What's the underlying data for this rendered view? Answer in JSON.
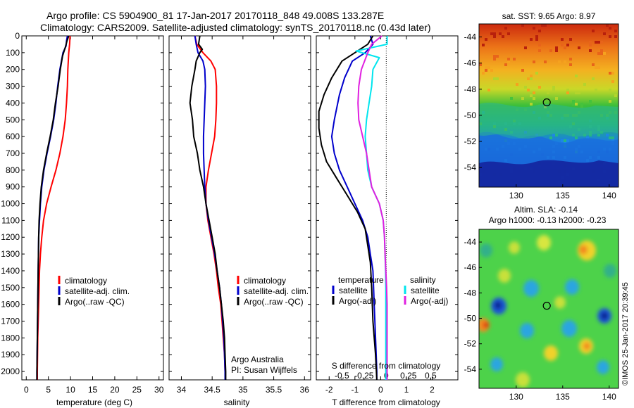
{
  "header": {
    "line1": "Argo profile: CS 5904900_81 17-Jan-2017 20170118_848 49.008S 133.287E",
    "line2": "Climatology: CARS2009. Satellite-adjusted climatology: synTS_20170118.nc (0.43d later)"
  },
  "colors": {
    "climatology": "#ff0000",
    "satellite": "#0000cc",
    "argo": "#000000",
    "sal_satellite": "#00e5ee",
    "sal_argo": "#e020e0"
  },
  "chart_data": [
    {
      "type": "line",
      "id": "temperature",
      "xlabel": "temperature (deg C)",
      "xlim": [
        -1,
        31
      ],
      "ylim": [
        2050,
        0
      ],
      "xticks": [
        0,
        5,
        10,
        15,
        20,
        25,
        30
      ],
      "yticks": [
        0,
        100,
        200,
        300,
        400,
        500,
        600,
        700,
        800,
        900,
        1000,
        1100,
        1200,
        1300,
        1400,
        1500,
        1600,
        1700,
        1800,
        1900,
        2000
      ],
      "legend": [
        "climatology",
        "satellite-adj. clim.",
        "Argo(..raw -QC)"
      ],
      "series": [
        {
          "name": "climatology",
          "color": "climatology",
          "points": [
            [
              9.9,
              0
            ],
            [
              9.8,
              50
            ],
            [
              9.6,
              100
            ],
            [
              9.4,
              200
            ],
            [
              9.3,
              300
            ],
            [
              9.1,
              400
            ],
            [
              8.8,
              500
            ],
            [
              8.3,
              600
            ],
            [
              7.6,
              700
            ],
            [
              6.7,
              800
            ],
            [
              5.6,
              900
            ],
            [
              4.6,
              1000
            ],
            [
              3.9,
              1100
            ],
            [
              3.5,
              1200
            ],
            [
              3.2,
              1300
            ],
            [
              3.0,
              1400
            ],
            [
              2.8,
              1600
            ],
            [
              2.6,
              1800
            ],
            [
              2.5,
              2000
            ],
            [
              2.5,
              2050
            ]
          ]
        },
        {
          "name": "satellite-adj. clim.",
          "color": "satellite",
          "points": [
            [
              9.3,
              0
            ],
            [
              9.1,
              30
            ],
            [
              9.0,
              60
            ],
            [
              8.3,
              100
            ],
            [
              7.6,
              200
            ],
            [
              7.1,
              300
            ],
            [
              6.7,
              400
            ],
            [
              6.2,
              500
            ],
            [
              5.5,
              600
            ],
            [
              4.7,
              700
            ],
            [
              4.0,
              800
            ],
            [
              3.5,
              900
            ],
            [
              3.2,
              1000
            ],
            [
              3.0,
              1100
            ],
            [
              2.8,
              1200
            ],
            [
              2.7,
              1400
            ],
            [
              2.6,
              1600
            ],
            [
              2.5,
              1800
            ],
            [
              2.4,
              2000
            ],
            [
              2.4,
              2050
            ]
          ]
        },
        {
          "name": "Argo(..raw -QC)",
          "color": "argo",
          "points": [
            [
              9.6,
              0
            ],
            [
              9.2,
              30
            ],
            [
              8.8,
              70
            ],
            [
              8.2,
              120
            ],
            [
              7.7,
              200
            ],
            [
              7.2,
              300
            ],
            [
              6.6,
              400
            ],
            [
              6.1,
              500
            ],
            [
              5.4,
              600
            ],
            [
              4.6,
              700
            ],
            [
              3.9,
              800
            ],
            [
              3.4,
              900
            ],
            [
              3.1,
              1000
            ],
            [
              2.9,
              1100
            ],
            [
              2.8,
              1200
            ],
            [
              2.7,
              1400
            ],
            [
              2.6,
              1600
            ],
            [
              2.5,
              1800
            ],
            [
              2.4,
              2000
            ],
            [
              2.4,
              2050
            ]
          ]
        }
      ]
    },
    {
      "type": "line",
      "id": "salinity",
      "xlabel": "salinity",
      "xlim": [
        33.8,
        36.1
      ],
      "ylim": [
        2050,
        0
      ],
      "xticks": [
        34,
        34.5,
        35,
        35.5,
        36
      ],
      "legend": [
        "climatology",
        "satellite-adj. clim.",
        "Argo(..raw -QC)"
      ],
      "annotations": [
        "Argo Australia",
        "PI: Susan Wijffels"
      ],
      "series": [
        {
          "name": "climatology",
          "color": "climatology",
          "points": [
            [
              34.22,
              0
            ],
            [
              34.25,
              50
            ],
            [
              34.35,
              100
            ],
            [
              34.48,
              150
            ],
            [
              34.55,
              200
            ],
            [
              34.57,
              300
            ],
            [
              34.57,
              400
            ],
            [
              34.56,
              500
            ],
            [
              34.54,
              600
            ],
            [
              34.49,
              700
            ],
            [
              34.44,
              800
            ],
            [
              34.4,
              900
            ],
            [
              34.4,
              1000
            ],
            [
              34.43,
              1100
            ],
            [
              34.48,
              1200
            ],
            [
              34.53,
              1300
            ],
            [
              34.57,
              1400
            ],
            [
              34.6,
              1500
            ],
            [
              34.64,
              1600
            ],
            [
              34.66,
              1700
            ],
            [
              34.68,
              1800
            ],
            [
              34.7,
              1900
            ],
            [
              34.71,
              2000
            ],
            [
              34.71,
              2050
            ]
          ]
        },
        {
          "name": "satellite-adj. clim.",
          "color": "satellite",
          "points": [
            [
              34.22,
              0
            ],
            [
              34.24,
              50
            ],
            [
              34.27,
              100
            ],
            [
              34.35,
              150
            ],
            [
              34.38,
              200
            ],
            [
              34.39,
              300
            ],
            [
              34.38,
              400
            ],
            [
              34.37,
              500
            ],
            [
              34.36,
              600
            ],
            [
              34.36,
              700
            ],
            [
              34.37,
              800
            ],
            [
              34.38,
              900
            ],
            [
              34.4,
              1000
            ],
            [
              34.44,
              1100
            ],
            [
              34.49,
              1200
            ],
            [
              34.54,
              1300
            ],
            [
              34.58,
              1400
            ],
            [
              34.62,
              1500
            ],
            [
              34.65,
              1600
            ],
            [
              34.67,
              1700
            ],
            [
              34.69,
              1800
            ],
            [
              34.7,
              1900
            ],
            [
              34.71,
              2000
            ],
            [
              34.71,
              2050
            ]
          ]
        },
        {
          "name": "Argo(..raw -QC)",
          "color": "argo",
          "points": [
            [
              34.3,
              0
            ],
            [
              34.28,
              50
            ],
            [
              34.34,
              80
            ],
            [
              34.3,
              100
            ],
            [
              34.24,
              150
            ],
            [
              34.22,
              200
            ],
            [
              34.17,
              300
            ],
            [
              34.14,
              400
            ],
            [
              34.18,
              500
            ],
            [
              34.2,
              600
            ],
            [
              34.26,
              700
            ],
            [
              34.3,
              800
            ],
            [
              34.36,
              900
            ],
            [
              34.4,
              1000
            ],
            [
              34.45,
              1100
            ],
            [
              34.5,
              1200
            ],
            [
              34.55,
              1300
            ],
            [
              34.58,
              1400
            ],
            [
              34.62,
              1500
            ],
            [
              34.65,
              1600
            ],
            [
              34.68,
              1700
            ],
            [
              34.7,
              1800
            ],
            [
              34.71,
              1900
            ],
            [
              34.72,
              2000
            ],
            [
              34.72,
              2050
            ]
          ]
        }
      ]
    },
    {
      "type": "line",
      "id": "difference",
      "xlabel": "T difference from climatology",
      "xlabel_top": "S difference from climatology",
      "xlim": [
        -2.5,
        3
      ],
      "ylim": [
        2050,
        0
      ],
      "xticks": [
        -2,
        -1,
        0,
        1,
        2
      ],
      "sticks": [
        -0.5,
        -0.25,
        0,
        0.25,
        0.5
      ],
      "stick_labels": [
        "-0.5",
        "-0.25",
        "0",
        "0.25",
        "0.5"
      ],
      "legend_t": [
        "temperature",
        "satellite",
        "Argo(-adj)"
      ],
      "legend_s": [
        "salinity",
        "satellite",
        "Argo(-adj)"
      ],
      "series": [
        {
          "name": "T satellite",
          "color": "satellite",
          "points": [
            [
              -0.4,
              0
            ],
            [
              -0.3,
              50
            ],
            [
              -0.6,
              100
            ],
            [
              -1.1,
              150
            ],
            [
              -1.4,
              250
            ],
            [
              -1.6,
              350
            ],
            [
              -1.8,
              500
            ],
            [
              -1.9,
              600
            ],
            [
              -1.8,
              700
            ],
            [
              -1.6,
              800
            ],
            [
              -1.3,
              900
            ],
            [
              -1.0,
              1000
            ],
            [
              -0.7,
              1100
            ],
            [
              -0.5,
              1200
            ],
            [
              -0.4,
              1300
            ],
            [
              -0.3,
              1400
            ],
            [
              -0.25,
              1600
            ],
            [
              -0.2,
              1800
            ],
            [
              -0.15,
              2000
            ],
            [
              -0.15,
              2050
            ]
          ]
        },
        {
          "name": "T Argo(-adj)",
          "color": "argo",
          "points": [
            [
              -0.3,
              0
            ],
            [
              -0.5,
              50
            ],
            [
              -1.0,
              100
            ],
            [
              -1.5,
              150
            ],
            [
              -1.9,
              250
            ],
            [
              -2.2,
              350
            ],
            [
              -2.4,
              450
            ],
            [
              -2.4,
              550
            ],
            [
              -2.3,
              650
            ],
            [
              -2.1,
              750
            ],
            [
              -1.7,
              850
            ],
            [
              -1.3,
              950
            ],
            [
              -0.9,
              1050
            ],
            [
              -0.6,
              1150
            ],
            [
              -0.5,
              1250
            ],
            [
              -0.4,
              1350
            ],
            [
              -0.35,
              1500
            ],
            [
              -0.3,
              1700
            ],
            [
              -0.2,
              1900
            ],
            [
              -0.15,
              2050
            ]
          ]
        },
        {
          "name": "S satellite",
          "color": "sal_satellite",
          "points": [
            [
              0.25,
              0
            ],
            [
              0.25,
              50
            ],
            [
              -0.95,
              90
            ],
            [
              -0.05,
              130
            ],
            [
              -0.3,
              200
            ],
            [
              -0.35,
              300
            ],
            [
              -0.45,
              400
            ],
            [
              -0.55,
              500
            ],
            [
              -0.6,
              600
            ],
            [
              -0.55,
              700
            ],
            [
              -0.5,
              800
            ],
            [
              -0.35,
              900
            ],
            [
              -0.05,
              1000
            ],
            [
              0.1,
              1100
            ],
            [
              0.15,
              1200
            ],
            [
              0.17,
              1300
            ],
            [
              0.19,
              1400
            ],
            [
              0.2,
              1500
            ],
            [
              0.2,
              1700
            ],
            [
              0.2,
              1900
            ],
            [
              0.2,
              2000
            ],
            [
              0.2,
              2050
            ]
          ]
        },
        {
          "name": "S Argo(-adj)",
          "color": "sal_argo",
          "points": [
            [
              0.05,
              0
            ],
            [
              -0.35,
              50
            ],
            [
              -0.5,
              100
            ],
            [
              -0.75,
              200
            ],
            [
              -0.85,
              300
            ],
            [
              -0.88,
              400
            ],
            [
              -0.85,
              500
            ],
            [
              -0.7,
              600
            ],
            [
              -0.55,
              700
            ],
            [
              -0.45,
              800
            ],
            [
              -0.35,
              900
            ],
            [
              -0.05,
              1000
            ],
            [
              0.1,
              1100
            ],
            [
              0.15,
              1200
            ],
            [
              0.17,
              1300
            ],
            [
              0.2,
              1400
            ],
            [
              0.23,
              1500
            ],
            [
              0.25,
              1600
            ],
            [
              0.25,
              1800
            ],
            [
              0.25,
              2000
            ],
            [
              0.25,
              2050
            ]
          ]
        }
      ]
    },
    {
      "type": "heatmap",
      "id": "sst_map",
      "title": "sat. SST: 9.65 Argo: 8.97",
      "xlim": [
        126,
        141
      ],
      "ylim": [
        -55.5,
        -43
      ],
      "xticks": [
        130,
        135,
        140
      ],
      "yticks": [
        -44,
        -46,
        -48,
        -50,
        -52,
        -54
      ],
      "marker": [
        133.287,
        -49.008
      ]
    },
    {
      "type": "heatmap",
      "id": "sla_map",
      "title": "Altim. SLA: -0.14",
      "subtitle": "Argo h1000: -0.13 h2000: -0.23",
      "xlim": [
        126,
        141
      ],
      "ylim": [
        -55.5,
        -43
      ],
      "xticks": [
        130,
        135,
        140
      ],
      "yticks": [
        -44,
        -46,
        -48,
        -50,
        -52,
        -54
      ],
      "marker": [
        133.287,
        -49.008
      ]
    }
  ],
  "credit": "©IMOS 25-Jan-2017 20:39:45"
}
